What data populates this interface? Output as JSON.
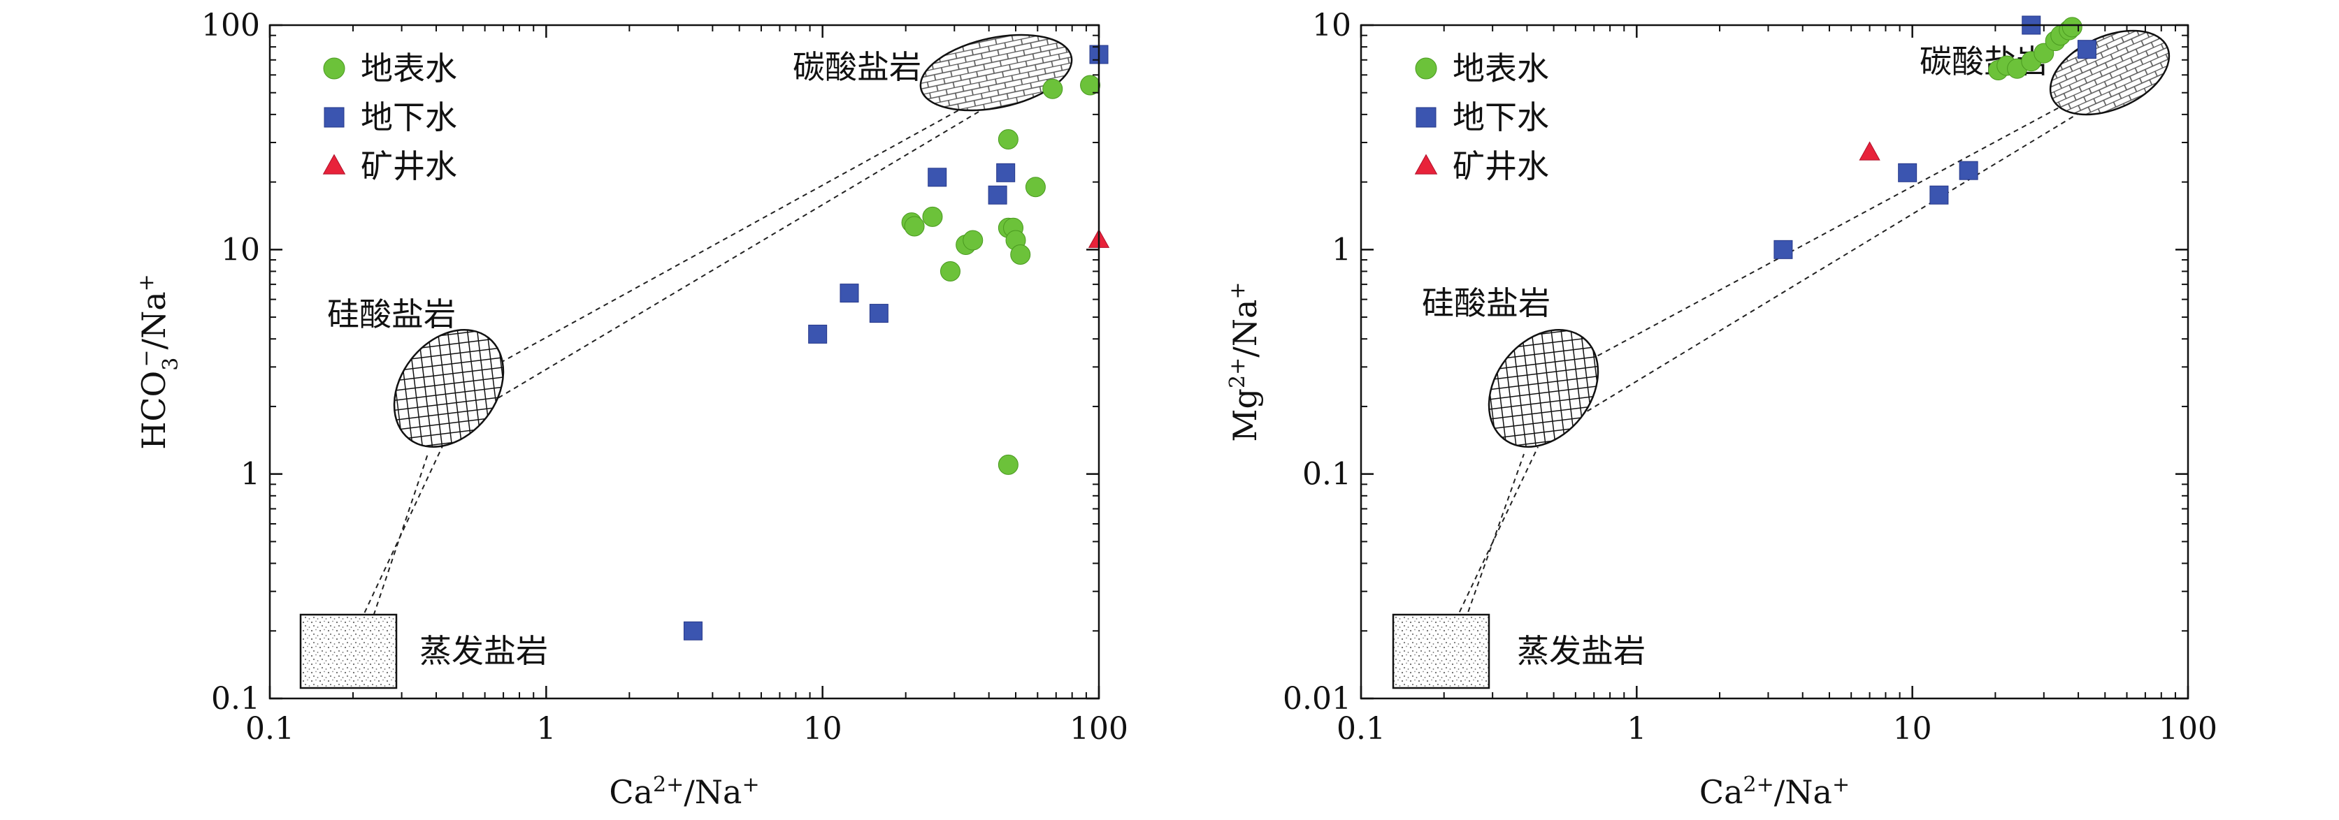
{
  "chart_data": [
    {
      "type": "scatter",
      "xscale": "log",
      "yscale": "log",
      "xlim": [
        0.1,
        100
      ],
      "ylim": [
        0.1,
        100
      ],
      "x_ticks": [
        "0.1",
        "1",
        "10",
        "100"
      ],
      "y_ticks": [
        "0.1",
        "1",
        "10",
        "100"
      ],
      "xlabel": "Ca²⁺/Na⁺",
      "ylabel": "HCO₃⁻/Na⁺",
      "xlabel_base": "Ca",
      "xlabel_sup": "2+",
      "xlabel_tail": "/Na",
      "xlabel_tail_sup": "+",
      "ylabel_base": "HCO",
      "ylabel_sub": "3",
      "ylabel_sup": "−",
      "ylabel_tail": "/Na",
      "ylabel_tail_sup": "+",
      "legend_position": "top-left",
      "series": [
        {
          "name": "地表水",
          "marker": "circle",
          "color": "#6cc23a",
          "points": [
            [
              21,
              13.2
            ],
            [
              21.5,
              12.7
            ],
            [
              25,
              14
            ],
            [
              29,
              8
            ],
            [
              33,
              10.5
            ],
            [
              35,
              11
            ],
            [
              47,
              31
            ],
            [
              47,
              12.5
            ],
            [
              49,
              12.5
            ],
            [
              50,
              11
            ],
            [
              52,
              9.5
            ],
            [
              59,
              19
            ],
            [
              68,
              52
            ],
            [
              93,
              54
            ],
            [
              47,
              1.1
            ]
          ]
        },
        {
          "name": "地下水",
          "marker": "square",
          "color": "#3b55b0",
          "points": [
            [
              3.4,
              0.2
            ],
            [
              9.6,
              4.2
            ],
            [
              12.5,
              6.4
            ],
            [
              16,
              5.2
            ],
            [
              26,
              21
            ],
            [
              43,
              17.5
            ],
            [
              46,
              22
            ],
            [
              100,
              74
            ]
          ]
        },
        {
          "name": "矿井水",
          "marker": "triangle",
          "color": "#e8223a",
          "points": [
            [
              100,
              11
            ]
          ]
        }
      ],
      "annotations": [
        {
          "label": "碳酸盐岩",
          "pattern": "bricks",
          "center": [
            50,
            57
          ]
        },
        {
          "label": "硅酸盐岩",
          "pattern": "crosshatch",
          "center": [
            0.5,
            2.2
          ]
        },
        {
          "label": "蒸发盐岩",
          "pattern": "dots",
          "center": [
            0.2,
            0.17
          ]
        }
      ]
    },
    {
      "type": "scatter",
      "xscale": "log",
      "yscale": "log",
      "xlim": [
        0.1,
        100
      ],
      "ylim": [
        0.01,
        10
      ],
      "x_ticks": [
        "0.1",
        "1",
        "10",
        "100"
      ],
      "y_ticks": [
        "0.01",
        "0.1",
        "1",
        "10"
      ],
      "xlabel": "Ca²⁺/Na⁺",
      "ylabel": "Mg²⁺/Na⁺",
      "xlabel_base": "Ca",
      "xlabel_sup": "2+",
      "xlabel_tail": "/Na",
      "xlabel_tail_sup": "+",
      "ylabel_base": "Mg",
      "ylabel_sup": "2+",
      "ylabel_tail": "/Na",
      "ylabel_tail_sup": "+",
      "legend_position": "top-left",
      "series": [
        {
          "name": "地表水",
          "marker": "circle",
          "color": "#6cc23a",
          "points": [
            [
              20.5,
              6.3
            ],
            [
              22,
              6.6
            ],
            [
              24,
              6.4
            ],
            [
              27,
              6.9
            ],
            [
              30,
              7.5
            ],
            [
              33,
              8.5
            ],
            [
              34.5,
              9
            ],
            [
              37,
              9.5
            ],
            [
              38,
              9.8
            ]
          ]
        },
        {
          "name": "地下水",
          "marker": "square",
          "color": "#3b55b0",
          "points": [
            [
              3.4,
              1.0
            ],
            [
              9.6,
              2.2
            ],
            [
              12.5,
              1.75
            ],
            [
              16,
              2.25
            ],
            [
              27,
              10
            ],
            [
              43,
              7.8
            ]
          ]
        },
        {
          "name": "矿井水",
          "marker": "triangle",
          "color": "#e8223a",
          "points": [
            [
              7,
              2.7
            ]
          ]
        }
      ],
      "annotations": [
        {
          "label": "碳酸盐岩",
          "pattern": "bricks",
          "center": [
            40,
            6.3
          ]
        },
        {
          "label": "硅酸盐岩",
          "pattern": "crosshatch",
          "center": [
            0.5,
            0.26
          ]
        },
        {
          "label": "蒸发盐岩",
          "pattern": "dots",
          "center": [
            0.2,
            0.017
          ]
        }
      ]
    }
  ]
}
